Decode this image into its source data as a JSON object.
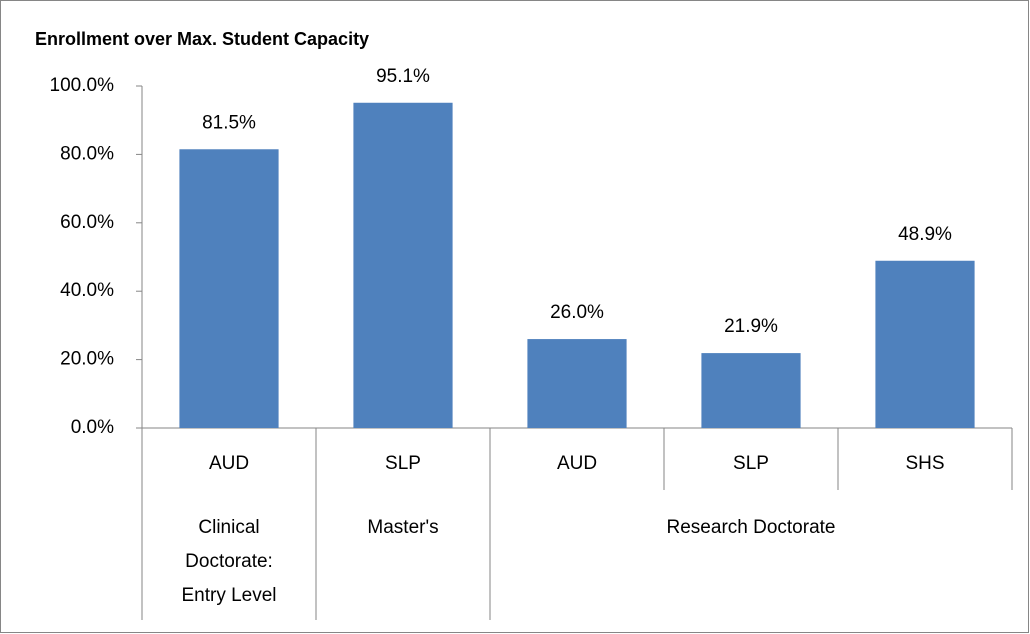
{
  "chart_data": {
    "type": "bar",
    "title": "Enrollment over Max. Student Capacity",
    "categories": [
      "AUD",
      "SLP",
      "AUD",
      "SLP",
      "SHS"
    ],
    "groups": [
      {
        "name": "Clinical Doctorate: Entry Level",
        "span": 1
      },
      {
        "name": "Master's",
        "span": 1
      },
      {
        "name": "Research Doctorate",
        "span": 3
      }
    ],
    "values": [
      81.5,
      95.1,
      26.0,
      21.9,
      48.9
    ],
    "value_labels": [
      "81.5%",
      "95.1%",
      "26.0%",
      "21.9%",
      "48.9%"
    ],
    "color": "#4f81bd",
    "ylim": [
      0,
      100
    ],
    "yticks": [
      {
        "value": 0,
        "label": "0.0%"
      },
      {
        "value": 20,
        "label": "20.0%"
      },
      {
        "value": 40,
        "label": "40.0%"
      },
      {
        "value": 60,
        "label": "60.0%"
      },
      {
        "value": 80,
        "label": "80.0%"
      },
      {
        "value": 100,
        "label": "100.0%"
      }
    ],
    "grid": false
  }
}
